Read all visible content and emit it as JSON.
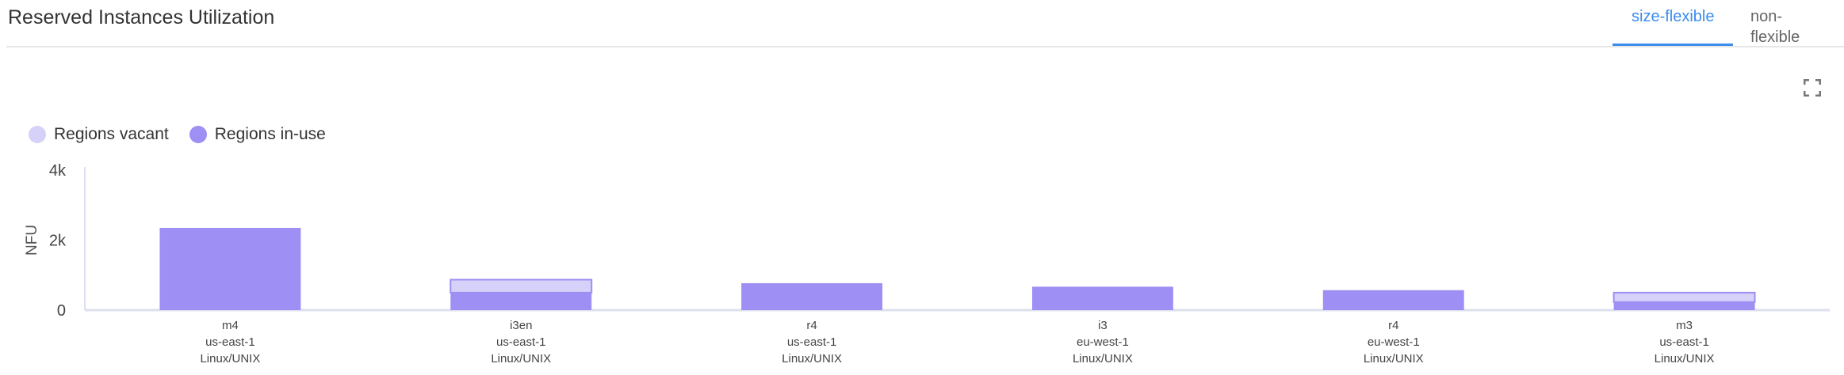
{
  "header": {
    "title": "Reserved Instances Utilization"
  },
  "tabs": [
    {
      "label": "size-flexible",
      "active": true
    },
    {
      "label": "non-flexible",
      "active": false
    }
  ],
  "icons": {
    "fullscreen": "fullscreen-icon"
  },
  "colors": {
    "vacant": "#d6d1f8",
    "in_use": "#9d8ff4",
    "accent": "#3b8ced"
  },
  "chart_data": {
    "type": "bar",
    "stacked": true,
    "ylabel": "NFU",
    "ylim": [
      0,
      4000
    ],
    "yticks": [
      "0",
      "2k",
      "4k"
    ],
    "ytick_values": [
      0,
      2000,
      4000
    ],
    "legend": "top-left",
    "grid": false,
    "categories": [
      [
        "m4",
        "us-east-1",
        "Linux/UNIX"
      ],
      [
        "i3en",
        "us-east-1",
        "Linux/UNIX"
      ],
      [
        "r4",
        "us-east-1",
        "Linux/UNIX"
      ],
      [
        "i3",
        "eu-west-1",
        "Linux/UNIX"
      ],
      [
        "r4",
        "eu-west-1",
        "Linux/UNIX"
      ],
      [
        "m3",
        "us-east-1",
        "Linux/UNIX"
      ]
    ],
    "series": [
      {
        "name": "Regions in-use",
        "values": [
          2350,
          500,
          770,
          670,
          570,
          230
        ]
      },
      {
        "name": "Regions vacant",
        "values": [
          0,
          370,
          0,
          0,
          0,
          270
        ]
      }
    ]
  }
}
